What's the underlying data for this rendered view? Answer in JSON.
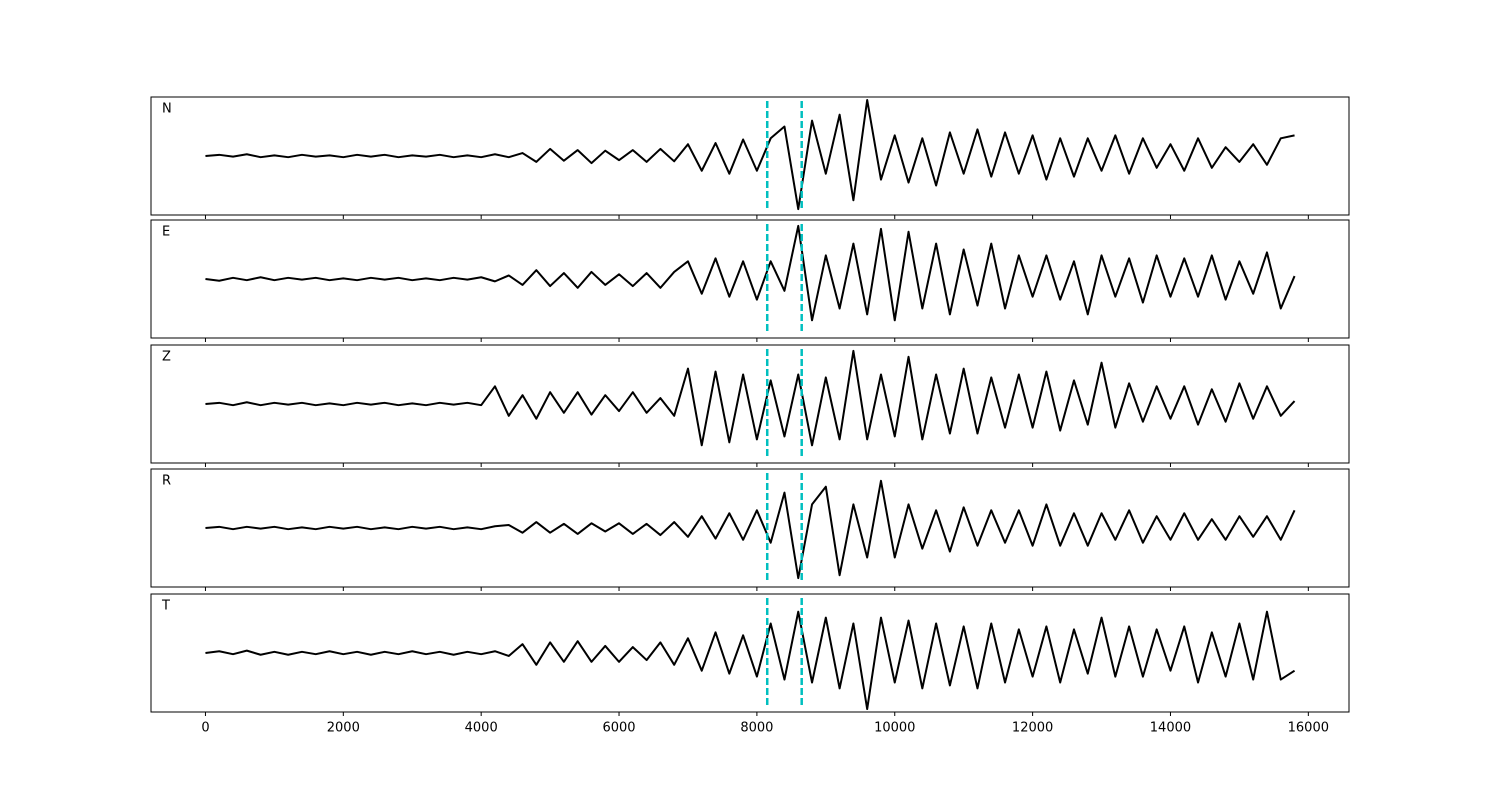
{
  "chart_data": [
    {
      "type": "line",
      "title": "N",
      "color": "#000000",
      "vlines": [
        8150,
        8650
      ],
      "vline_color": "#00bfbf",
      "xlim": [
        -790,
        16590
      ],
      "ylim": [
        -1,
        1
      ],
      "xticks": [
        0,
        2000,
        4000,
        6000,
        8000,
        10000,
        12000,
        14000,
        16000
      ],
      "x": [
        0,
        200,
        400,
        600,
        800,
        1000,
        1200,
        1400,
        1600,
        1800,
        2000,
        2200,
        2400,
        2600,
        2800,
        3000,
        3200,
        3400,
        3600,
        3800,
        4000,
        4200,
        4400,
        4600,
        4800,
        5000,
        5200,
        5400,
        5600,
        5800,
        6000,
        6200,
        6400,
        6600,
        6800,
        7000,
        7200,
        7400,
        7600,
        7800,
        8000,
        8200,
        8400,
        8600,
        8800,
        9000,
        9200,
        9400,
        9600,
        9800,
        10000,
        10200,
        10400,
        10600,
        10800,
        11000,
        11200,
        11400,
        11600,
        11800,
        12000,
        12200,
        12400,
        12600,
        12800,
        13000,
        13200,
        13400,
        13600,
        13800,
        14000,
        14200,
        14400,
        14600,
        14800,
        15000,
        15200,
        15400,
        15600,
        15800
      ],
      "values": [
        0,
        0.02,
        -0.01,
        0.03,
        -0.02,
        0.01,
        -0.02,
        0.02,
        -0.01,
        0.01,
        -0.02,
        0.02,
        -0.01,
        0.02,
        -0.02,
        0.01,
        -0.01,
        0.02,
        -0.02,
        0.01,
        -0.02,
        0.03,
        -0.02,
        0.05,
        -0.1,
        0.12,
        -0.08,
        0.1,
        -0.12,
        0.09,
        -0.07,
        0.1,
        -0.1,
        0.12,
        -0.09,
        0.2,
        -0.25,
        0.22,
        -0.3,
        0.28,
        -0.25,
        0.3,
        0.5,
        -0.9,
        0.6,
        -0.3,
        0.7,
        -0.75,
        0.95,
        -0.4,
        0.35,
        -0.45,
        0.3,
        -0.5,
        0.4,
        -0.3,
        0.45,
        -0.35,
        0.4,
        -0.3,
        0.35,
        -0.4,
        0.3,
        -0.35,
        0.3,
        -0.25,
        0.35,
        -0.3,
        0.3,
        -0.2,
        0.2,
        -0.25,
        0.3,
        -0.2,
        0.15,
        -0.1,
        0.2,
        -0.15,
        0.3,
        0.35
      ]
    },
    {
      "type": "line",
      "title": "E",
      "color": "#000000",
      "vlines": [
        8150,
        8650
      ],
      "vline_color": "#00bfbf",
      "xlim": [
        -790,
        16590
      ],
      "ylim": [
        -1,
        1
      ],
      "xticks": [
        0,
        2000,
        4000,
        6000,
        8000,
        10000,
        12000,
        14000,
        16000
      ],
      "x": [
        0,
        200,
        400,
        600,
        800,
        1000,
        1200,
        1400,
        1600,
        1800,
        2000,
        2200,
        2400,
        2600,
        2800,
        3000,
        3200,
        3400,
        3600,
        3800,
        4000,
        4200,
        4400,
        4600,
        4800,
        5000,
        5200,
        5400,
        5600,
        5800,
        6000,
        6200,
        6400,
        6600,
        6800,
        7000,
        7200,
        7400,
        7600,
        7800,
        8000,
        8200,
        8400,
        8600,
        8800,
        9000,
        9200,
        9400,
        9600,
        9800,
        10000,
        10200,
        10400,
        10600,
        10800,
        11000,
        11200,
        11400,
        11600,
        11800,
        12000,
        12200,
        12400,
        12600,
        12800,
        13000,
        13200,
        13400,
        13600,
        13800,
        14000,
        14200,
        14400,
        14600,
        14800,
        15000,
        15200,
        15400,
        15600,
        15800
      ],
      "values": [
        0,
        -0.03,
        0.02,
        -0.02,
        0.03,
        -0.02,
        0.02,
        -0.01,
        0.02,
        -0.02,
        0.01,
        -0.02,
        0.02,
        -0.01,
        0.02,
        -0.02,
        0.01,
        -0.02,
        0.02,
        -0.01,
        0.03,
        -0.04,
        0.06,
        -0.1,
        0.15,
        -0.12,
        0.1,
        -0.15,
        0.12,
        -0.1,
        0.08,
        -0.12,
        0.1,
        -0.15,
        0.12,
        0.3,
        -0.25,
        0.35,
        -0.3,
        0.3,
        -0.35,
        0.3,
        -0.2,
        0.9,
        -0.7,
        0.4,
        -0.5,
        0.6,
        -0.6,
        0.85,
        -0.7,
        0.8,
        -0.5,
        0.6,
        -0.6,
        0.5,
        -0.45,
        0.6,
        -0.5,
        0.4,
        -0.3,
        0.4,
        -0.35,
        0.3,
        -0.6,
        0.4,
        -0.3,
        0.35,
        -0.4,
        0.4,
        -0.3,
        0.35,
        -0.3,
        0.4,
        -0.35,
        0.3,
        -0.25,
        0.45,
        -0.5,
        0.05
      ]
    },
    {
      "type": "line",
      "title": "Z",
      "color": "#000000",
      "vlines": [
        8150,
        8650
      ],
      "vline_color": "#00bfbf",
      "xlim": [
        -790,
        16590
      ],
      "ylim": [
        -1,
        1
      ],
      "xticks": [
        0,
        2000,
        4000,
        6000,
        8000,
        10000,
        12000,
        14000,
        16000
      ],
      "x": [
        0,
        200,
        400,
        600,
        800,
        1000,
        1200,
        1400,
        1600,
        1800,
        2000,
        2200,
        2400,
        2600,
        2800,
        3000,
        3200,
        3400,
        3600,
        3800,
        4000,
        4200,
        4400,
        4600,
        4800,
        5000,
        5200,
        5400,
        5600,
        5800,
        6000,
        6200,
        6400,
        6600,
        6800,
        7000,
        7200,
        7400,
        7600,
        7800,
        8000,
        8200,
        8400,
        8600,
        8800,
        9000,
        9200,
        9400,
        9600,
        9800,
        10000,
        10200,
        10400,
        10600,
        10800,
        11000,
        11200,
        11400,
        11600,
        11800,
        12000,
        12200,
        12400,
        12600,
        12800,
        13000,
        13200,
        13400,
        13600,
        13800,
        14000,
        14200,
        14400,
        14600,
        14800,
        15000,
        15200,
        15400,
        15600,
        15800
      ],
      "values": [
        0,
        0.02,
        -0.02,
        0.03,
        -0.02,
        0.02,
        -0.01,
        0.02,
        -0.02,
        0.01,
        -0.02,
        0.02,
        -0.01,
        0.02,
        -0.02,
        0.01,
        -0.02,
        0.02,
        -0.01,
        0.02,
        -0.02,
        0.3,
        -0.2,
        0.15,
        -0.25,
        0.2,
        -0.15,
        0.2,
        -0.18,
        0.15,
        -0.12,
        0.2,
        -0.15,
        0.1,
        -0.2,
        0.6,
        -0.7,
        0.55,
        -0.65,
        0.5,
        -0.6,
        0.4,
        -0.55,
        0.5,
        -0.7,
        0.45,
        -0.6,
        0.9,
        -0.6,
        0.5,
        -0.55,
        0.8,
        -0.6,
        0.5,
        -0.5,
        0.6,
        -0.5,
        0.45,
        -0.4,
        0.5,
        -0.4,
        0.55,
        -0.45,
        0.4,
        -0.35,
        0.7,
        -0.4,
        0.35,
        -0.3,
        0.3,
        -0.25,
        0.3,
        -0.35,
        0.25,
        -0.3,
        0.35,
        -0.25,
        0.3,
        -0.2,
        0.05
      ]
    },
    {
      "type": "line",
      "title": "R",
      "color": "#000000",
      "vlines": [
        8150,
        8650
      ],
      "vline_color": "#00bfbf",
      "xlim": [
        -790,
        16590
      ],
      "ylim": [
        -1,
        1
      ],
      "xticks": [
        0,
        2000,
        4000,
        6000,
        8000,
        10000,
        12000,
        14000,
        16000
      ],
      "x": [
        0,
        200,
        400,
        600,
        800,
        1000,
        1200,
        1400,
        1600,
        1800,
        2000,
        2200,
        2400,
        2600,
        2800,
        3000,
        3200,
        3400,
        3600,
        3800,
        4000,
        4200,
        4400,
        4600,
        4800,
        5000,
        5200,
        5400,
        5600,
        5800,
        6000,
        6200,
        6400,
        6600,
        6800,
        7000,
        7200,
        7400,
        7600,
        7800,
        8000,
        8200,
        8400,
        8600,
        8800,
        9000,
        9200,
        9400,
        9600,
        9800,
        10000,
        10200,
        10400,
        10600,
        10800,
        11000,
        11200,
        11400,
        11600,
        11800,
        12000,
        12200,
        12400,
        12600,
        12800,
        13000,
        13200,
        13400,
        13600,
        13800,
        14000,
        14200,
        14400,
        14600,
        14800,
        15000,
        15200,
        15400,
        15600,
        15800
      ],
      "values": [
        0,
        0.02,
        -0.02,
        0.02,
        -0.01,
        0.02,
        -0.02,
        0.01,
        -0.02,
        0.02,
        -0.01,
        0.02,
        -0.02,
        0.01,
        -0.02,
        0.02,
        -0.01,
        0.02,
        -0.02,
        0.01,
        -0.02,
        0.03,
        0.05,
        -0.08,
        0.1,
        -0.08,
        0.07,
        -0.1,
        0.08,
        -0.06,
        0.08,
        -0.1,
        0.07,
        -0.12,
        0.1,
        -0.15,
        0.2,
        -0.18,
        0.25,
        -0.2,
        0.3,
        -0.25,
        0.6,
        -0.85,
        0.4,
        0.7,
        -0.8,
        0.4,
        -0.5,
        0.8,
        -0.5,
        0.4,
        -0.35,
        0.3,
        -0.4,
        0.35,
        -0.3,
        0.3,
        -0.25,
        0.3,
        -0.3,
        0.4,
        -0.3,
        0.25,
        -0.3,
        0.25,
        -0.2,
        0.3,
        -0.25,
        0.2,
        -0.2,
        0.25,
        -0.2,
        0.15,
        -0.2,
        0.2,
        -0.15,
        0.2,
        -0.2,
        0.3
      ]
    },
    {
      "type": "line",
      "title": "T",
      "color": "#000000",
      "vlines": [
        8150,
        8650
      ],
      "vline_color": "#00bfbf",
      "xlim": [
        -790,
        16590
      ],
      "ylim": [
        -1,
        1
      ],
      "xticks": [
        0,
        2000,
        4000,
        6000,
        8000,
        10000,
        12000,
        14000,
        16000
      ],
      "x": [
        0,
        200,
        400,
        600,
        800,
        1000,
        1200,
        1400,
        1600,
        1800,
        2000,
        2200,
        2400,
        2600,
        2800,
        3000,
        3200,
        3400,
        3600,
        3800,
        4000,
        4200,
        4400,
        4600,
        4800,
        5000,
        5200,
        5400,
        5600,
        5800,
        6000,
        6200,
        6400,
        6600,
        6800,
        7000,
        7200,
        7400,
        7600,
        7800,
        8000,
        8200,
        8400,
        8600,
        8800,
        9000,
        9200,
        9400,
        9600,
        9800,
        10000,
        10200,
        10400,
        10600,
        10800,
        11000,
        11200,
        11400,
        11600,
        11800,
        12000,
        12200,
        12400,
        12600,
        12800,
        13000,
        13200,
        13400,
        13600,
        13800,
        14000,
        14200,
        14400,
        14600,
        14800,
        15000,
        15200,
        15400,
        15600,
        15800
      ],
      "values": [
        0,
        0.03,
        -0.02,
        0.04,
        -0.03,
        0.02,
        -0.03,
        0.02,
        -0.02,
        0.03,
        -0.02,
        0.02,
        -0.03,
        0.02,
        -0.02,
        0.03,
        -0.02,
        0.02,
        -0.03,
        0.02,
        -0.02,
        0.03,
        -0.05,
        0.15,
        -0.2,
        0.18,
        -0.15,
        0.2,
        -0.15,
        0.12,
        -0.15,
        0.1,
        -0.12,
        0.18,
        -0.2,
        0.25,
        -0.3,
        0.35,
        -0.35,
        0.3,
        -0.4,
        0.5,
        -0.45,
        0.7,
        -0.5,
        0.6,
        -0.6,
        0.5,
        -0.95,
        0.6,
        -0.5,
        0.55,
        -0.6,
        0.5,
        -0.55,
        0.45,
        -0.6,
        0.5,
        -0.5,
        0.4,
        -0.4,
        0.45,
        -0.5,
        0.4,
        -0.35,
        0.6,
        -0.4,
        0.45,
        -0.4,
        0.4,
        -0.3,
        0.45,
        -0.5,
        0.35,
        -0.4,
        0.5,
        -0.45,
        0.7,
        -0.45,
        -0.3
      ]
    }
  ]
}
